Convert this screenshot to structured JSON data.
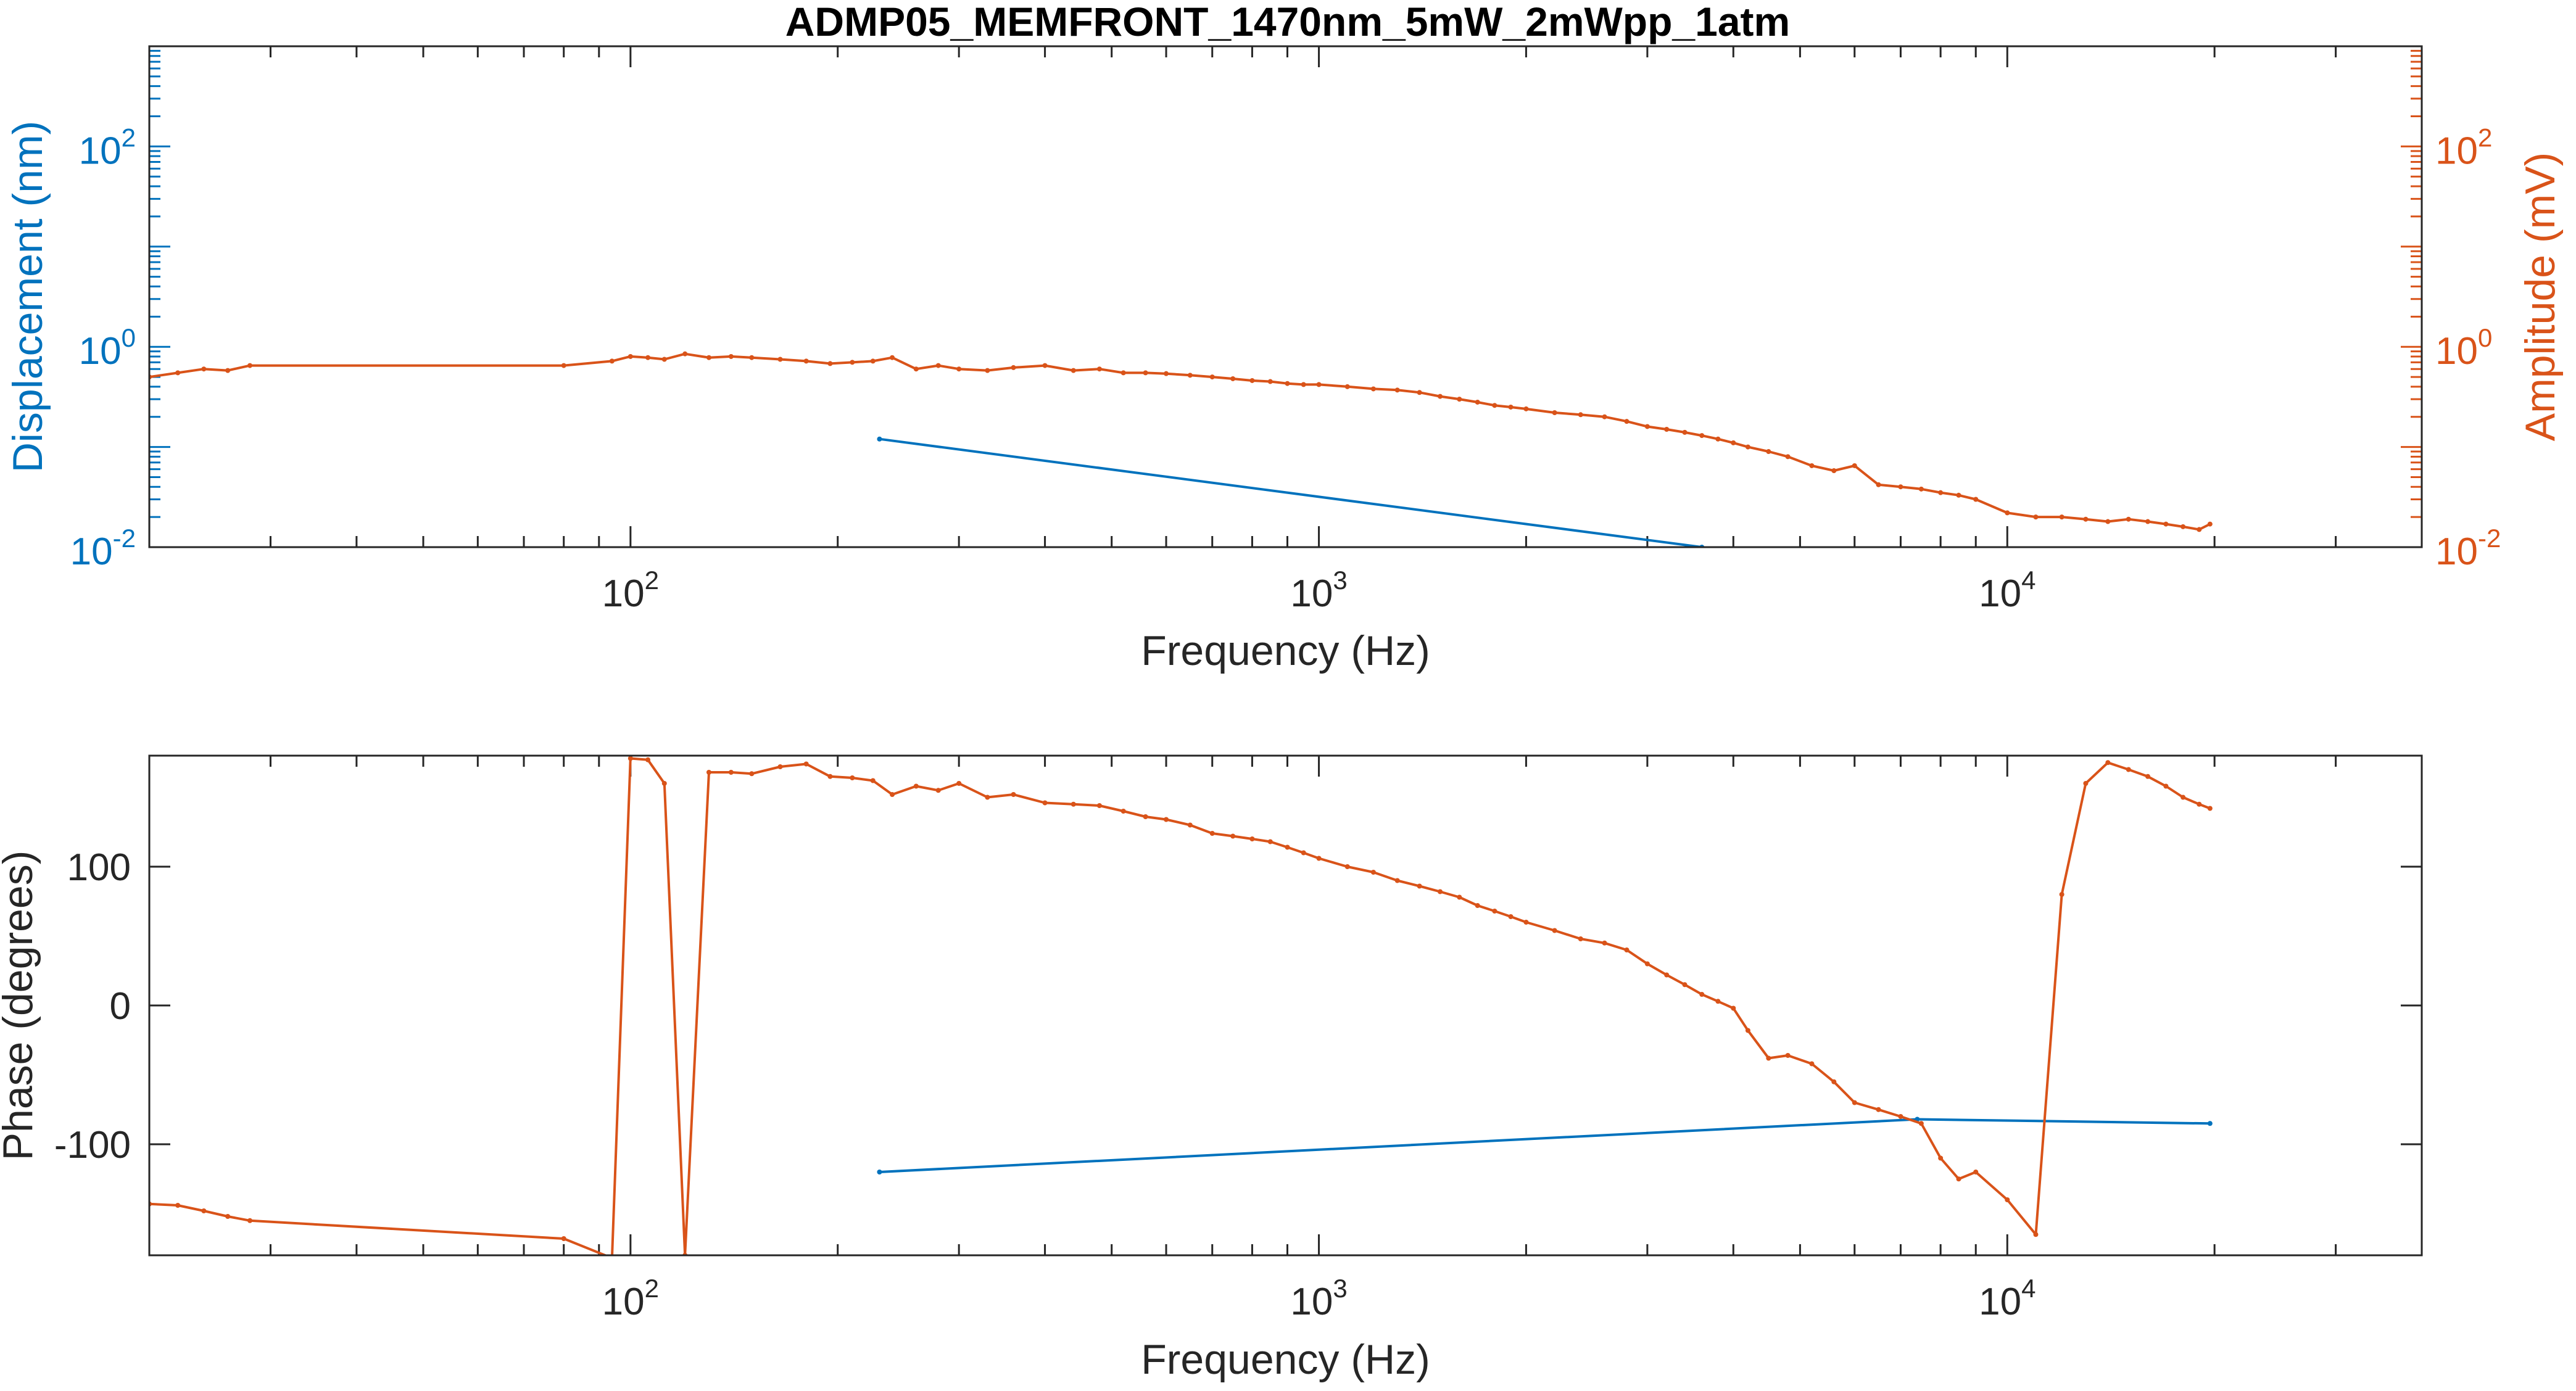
{
  "figure": {
    "title": "ADMP05_MEMFRONT_1470nm_5mW_2mWpp_1atm"
  },
  "colors": {
    "blue": "#0072BD",
    "orange": "#D95319",
    "axis": "#262626",
    "grid_tick": "#262626"
  },
  "chart_data": [
    {
      "type": "line",
      "title": "ADMP05_MEMFRONT_1470nm_5mW_2mWpp_1atm",
      "xlabel": "Frequency (Hz)",
      "ylabel_left": "Displacement (nm)",
      "ylabel_right": "Amplitude (mV)",
      "xscale": "log",
      "yscale": "log",
      "xlim": [
        20,
        40000
      ],
      "ylim_left": [
        0.01,
        1000
      ],
      "ylim_right": [
        0.01,
        1000
      ],
      "xticks": [
        {
          "base": "10",
          "exp": "2",
          "value": 100
        },
        {
          "base": "10",
          "exp": "3",
          "value": 1000
        },
        {
          "base": "10",
          "exp": "4",
          "value": 10000
        }
      ],
      "yticks_left": [
        {
          "base": "10",
          "exp": "-2",
          "value": 0.01
        },
        {
          "base": "10",
          "exp": "0",
          "value": 1
        },
        {
          "base": "10",
          "exp": "2",
          "value": 100
        }
      ],
      "yticks_right": [
        {
          "base": "10",
          "exp": "-2",
          "value": 0.01
        },
        {
          "base": "10",
          "exp": "0",
          "value": 1
        },
        {
          "base": "10",
          "exp": "2",
          "value": 100
        }
      ],
      "series": [
        {
          "axis": "left",
          "color": "#0072BD",
          "x": [
            230,
            3600
          ],
          "y": [
            0.12,
            0.01
          ]
        },
        {
          "axis": "right",
          "color": "#D95319",
          "x": [
            20,
            22,
            24,
            26,
            28,
            80,
            94,
            100,
            106,
            112,
            120,
            130,
            140,
            150,
            165,
            180,
            195,
            210,
            225,
            240,
            260,
            280,
            300,
            330,
            360,
            400,
            440,
            480,
            520,
            560,
            600,
            650,
            700,
            750,
            800,
            850,
            900,
            950,
            1000,
            1100,
            1200,
            1300,
            1400,
            1500,
            1600,
            1700,
            1800,
            1900,
            2000,
            2200,
            2400,
            2600,
            2800,
            3000,
            3200,
            3400,
            3600,
            3800,
            4000,
            4200,
            4500,
            4800,
            5200,
            5600,
            6000,
            6500,
            7000,
            7500,
            8000,
            8500,
            9000,
            10000,
            11000,
            12000,
            13000,
            14000,
            15000,
            16000,
            17000,
            18000,
            19000,
            19700
          ],
          "y": [
            0.5,
            0.55,
            0.6,
            0.58,
            0.65,
            0.65,
            0.72,
            0.8,
            0.78,
            0.75,
            0.85,
            0.78,
            0.8,
            0.78,
            0.75,
            0.72,
            0.68,
            0.7,
            0.72,
            0.78,
            0.6,
            0.65,
            0.6,
            0.58,
            0.62,
            0.65,
            0.58,
            0.6,
            0.55,
            0.55,
            0.54,
            0.52,
            0.5,
            0.48,
            0.46,
            0.45,
            0.43,
            0.42,
            0.42,
            0.4,
            0.38,
            0.37,
            0.35,
            0.32,
            0.3,
            0.28,
            0.26,
            0.25,
            0.24,
            0.22,
            0.21,
            0.2,
            0.18,
            0.16,
            0.15,
            0.14,
            0.13,
            0.12,
            0.11,
            0.1,
            0.09,
            0.08,
            0.065,
            0.058,
            0.065,
            0.042,
            0.04,
            0.038,
            0.035,
            0.033,
            0.03,
            0.022,
            0.02,
            0.02,
            0.019,
            0.018,
            0.019,
            0.018,
            0.017,
            0.016,
            0.015,
            0.017
          ]
        }
      ]
    },
    {
      "type": "line",
      "xlabel": "Frequency (Hz)",
      "ylabel": "Phase (degrees)",
      "xscale": "log",
      "xlim": [
        20,
        40000
      ],
      "ylim": [
        -180,
        180
      ],
      "xticks": [
        {
          "base": "10",
          "exp": "2",
          "value": 100
        },
        {
          "base": "10",
          "exp": "3",
          "value": 1000
        },
        {
          "base": "10",
          "exp": "4",
          "value": 10000
        }
      ],
      "yticks": [
        {
          "label": "-100",
          "value": -100
        },
        {
          "label": "0",
          "value": 0
        },
        {
          "label": "100",
          "value": 100
        }
      ],
      "series": [
        {
          "color": "#0072BD",
          "x": [
            230,
            7400,
            19700
          ],
          "y": [
            -120,
            -82,
            -85
          ]
        },
        {
          "color": "#D95319",
          "x": [
            20,
            22,
            24,
            26,
            28,
            80,
            94,
            100,
            106,
            112,
            120,
            130,
            140,
            150,
            165,
            180,
            195,
            210,
            225,
            240,
            260,
            280,
            300,
            330,
            360,
            400,
            440,
            480,
            520,
            560,
            600,
            650,
            700,
            750,
            800,
            850,
            900,
            950,
            1000,
            1100,
            1200,
            1300,
            1400,
            1500,
            1600,
            1700,
            1800,
            1900,
            2000,
            2200,
            2400,
            2600,
            2800,
            3000,
            3200,
            3400,
            3600,
            3800,
            4000,
            4200,
            4500,
            4800,
            5200,
            5600,
            6000,
            6500,
            7000,
            7500,
            8000,
            8500,
            9000,
            10000,
            11000,
            12000,
            13000,
            14000,
            15000,
            16000,
            17000,
            18000,
            19000,
            19700
          ],
          "y": [
            -143,
            -144,
            -148,
            -152,
            -155,
            -168,
            -182,
            178,
            177,
            160,
            -180,
            168,
            168,
            167,
            172,
            174,
            165,
            164,
            162,
            152,
            158,
            155,
            160,
            150,
            152,
            146,
            145,
            144,
            140,
            136,
            134,
            130,
            124,
            122,
            120,
            118,
            114,
            110,
            106,
            100,
            96,
            90,
            86,
            82,
            78,
            72,
            68,
            64,
            60,
            54,
            48,
            45,
            40,
            30,
            22,
            15,
            8,
            3,
            -2,
            -18,
            -38,
            -36,
            -42,
            -55,
            -70,
            -75,
            -80,
            -85,
            -110,
            -125,
            -120,
            -140,
            -165,
            80,
            160,
            175,
            170,
            165,
            158,
            150,
            145,
            142
          ]
        }
      ]
    }
  ]
}
